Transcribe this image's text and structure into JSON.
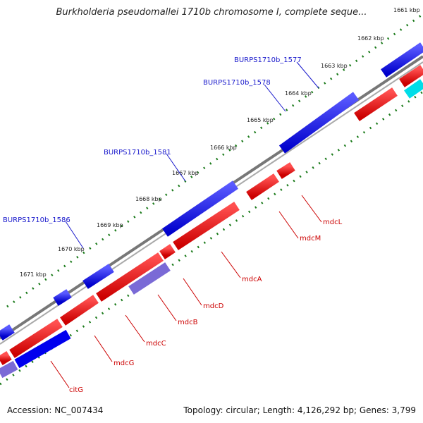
{
  "title": "Burkholderia pseudomallei 1710b chromosome I, complete seque...",
  "footer": {
    "accession": "Accession: NC_007434",
    "summary": "Topology: circular; Length: 4,126,292 bp; Genes: 3,799"
  },
  "colors": {
    "forward": "#0000ee",
    "reverse": "#ee0000",
    "light_blue": "#7a6ad6",
    "cyan": "#00e0ee",
    "backbone": "#888888",
    "tick": "#1a7a1a"
  },
  "ticks": [
    "1661 kbp",
    "1662 kbp",
    "1663 kbp",
    "1664 kbp",
    "1665 kbp",
    "1666 kbp",
    "1667 kbp",
    "1668 kbp",
    "1669 kbp",
    "1670 kbp",
    "1671 kbp"
  ],
  "forward_labels": [
    "BURPS1710b_1577",
    "BURPS1710b_1578",
    "BURPS1710b_1581",
    "BURPS1710b_1586"
  ],
  "reverse_labels": [
    "mdcL",
    "mdcM",
    "mdcA",
    "mdcD",
    "mdcB",
    "mdcC",
    "mdcG",
    "citG"
  ]
}
